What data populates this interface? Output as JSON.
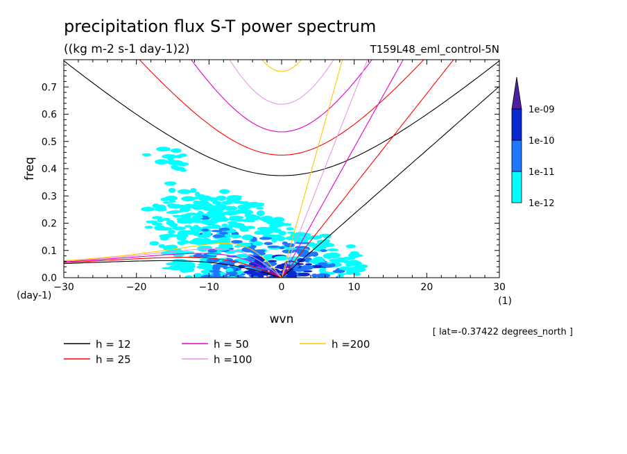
{
  "chart_data": {
    "type": "heatmap",
    "title": "precipitation flux S-T power spectrum",
    "subtitle": "((kg m-2 s-1 day-1)2)",
    "run_label": "T159L48_eml_control-5N",
    "xlabel": "wvn",
    "ylabel": "freq",
    "x_units": "(1)",
    "y_units": "(day-1)",
    "xlim": [
      -30,
      30
    ],
    "ylim": [
      0,
      0.8
    ],
    "x_ticks": [
      -30,
      -20,
      -10,
      0,
      10,
      20,
      30
    ],
    "y_ticks": [
      0.0,
      0.1,
      0.2,
      0.3,
      0.4,
      0.5,
      0.6,
      0.7
    ],
    "x_tick_labels": [
      "−30",
      "−20",
      "−10",
      "0",
      "10",
      "20",
      "30"
    ],
    "y_tick_labels": [
      "0.0",
      "0.1",
      "0.2",
      "0.3",
      "0.4",
      "0.5",
      "0.6",
      "0.7"
    ],
    "annotation": "[ lat=-0.37422 degrees_north ]",
    "colorbar": {
      "labels": [
        "1e-12",
        "1e-11",
        "1e-10",
        "1e-09"
      ],
      "colors": [
        "#00ffff",
        "#1e78ff",
        "#0a28d2",
        "#4b1fa0"
      ]
    },
    "series": [
      {
        "name": "h = 12",
        "color": "#000000"
      },
      {
        "name": "h = 25",
        "color": "#ff0000"
      },
      {
        "name": "h = 50",
        "color": "#e600c8"
      },
      {
        "name": "h =100",
        "color": "#e696e6"
      },
      {
        "name": "h =200",
        "color": "#ffc800"
      }
    ],
    "equivalent_depths": [
      12,
      25,
      50,
      100,
      200
    ]
  }
}
